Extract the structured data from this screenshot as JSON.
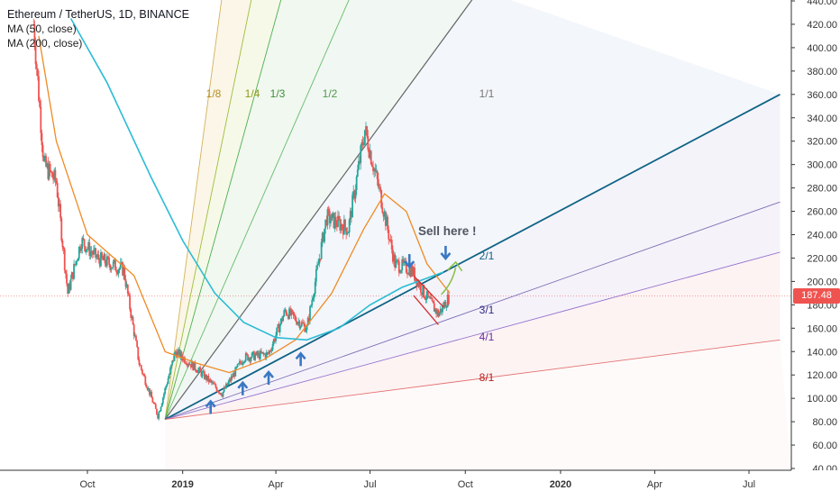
{
  "legend": {
    "title": "Ethereum / TetherUS, 1D, BINANCE",
    "ma50": "MA (50, close)",
    "ma200": "MA (200, close)"
  },
  "price_tag": {
    "value": "187.48",
    "color": "#ef5350"
  },
  "annotation": {
    "sell_text": "Sell here !"
  },
  "colors": {
    "up": "#26a69a",
    "down": "#ef5350",
    "ma50": "#f08a24",
    "ma200": "#2bbcd6",
    "trend": "#0f6385",
    "arrow": "#3a78c3"
  },
  "chart_data": {
    "type": "candlestick",
    "x_tick_labels": [
      "Oct",
      "2019",
      "Apr",
      "Jul",
      "Oct",
      "2020",
      "Apr",
      "Jul"
    ],
    "y_tick_labels": [
      "40.00",
      "60.00",
      "80.00",
      "100.00",
      "120.00",
      "140.00",
      "160.00",
      "180.00",
      "200.00",
      "220.00",
      "240.00",
      "260.00",
      "280.00",
      "300.00",
      "320.00",
      "340.00",
      "360.00",
      "380.00",
      "400.00",
      "420.00",
      "440.00"
    ],
    "ylim": [
      40,
      440
    ],
    "y_ticks": [
      40,
      60,
      80,
      100,
      120,
      140,
      160,
      180,
      200,
      220,
      240,
      260,
      280,
      300,
      320,
      340,
      360,
      380,
      400,
      420,
      440
    ],
    "x_tick_dates": [
      "2018-10-01",
      "2019-01-01",
      "2019-04-01",
      "2019-07-01",
      "2019-10-01",
      "2020-01-01",
      "2020-04-01",
      "2020-07-01"
    ],
    "last_price": 187.48,
    "price_path": [
      [
        "2018-08-10",
        420
      ],
      [
        "2018-08-20",
        300
      ],
      [
        "2018-09-01",
        285
      ],
      [
        "2018-09-12",
        190
      ],
      [
        "2018-09-25",
        235
      ],
      [
        "2018-10-10",
        220
      ],
      [
        "2018-11-05",
        210
      ],
      [
        "2018-11-20",
        130
      ],
      [
        "2018-12-08",
        85
      ],
      [
        "2018-12-25",
        140
      ],
      [
        "2019-01-15",
        125
      ],
      [
        "2019-02-08",
        104
      ],
      [
        "2019-03-01",
        135
      ],
      [
        "2019-03-25",
        138
      ],
      [
        "2019-04-10",
        175
      ],
      [
        "2019-05-01",
        160
      ],
      [
        "2019-05-20",
        255
      ],
      [
        "2019-06-10",
        245
      ],
      [
        "2019-06-26",
        330
      ],
      [
        "2019-07-12",
        270
      ],
      [
        "2019-07-25",
        215
      ],
      [
        "2019-08-10",
        210
      ],
      [
        "2019-08-22",
        190
      ],
      [
        "2019-09-05",
        172
      ],
      [
        "2019-09-16",
        187.48
      ]
    ],
    "ma50_path": [
      [
        "2018-08-15",
        410
      ],
      [
        "2018-09-01",
        320
      ],
      [
        "2018-10-01",
        240
      ],
      [
        "2018-11-15",
        205
      ],
      [
        "2018-12-15",
        140
      ],
      [
        "2019-01-15",
        130
      ],
      [
        "2019-02-15",
        122
      ],
      [
        "2019-03-20",
        133
      ],
      [
        "2019-04-20",
        150
      ],
      [
        "2019-05-25",
        190
      ],
      [
        "2019-06-25",
        245
      ],
      [
        "2019-07-15",
        275
      ],
      [
        "2019-08-05",
        260
      ],
      [
        "2019-08-25",
        215
      ],
      [
        "2019-09-16",
        190
      ]
    ],
    "ma200_path": [
      [
        "2018-09-15",
        425
      ],
      [
        "2018-10-20",
        370
      ],
      [
        "2018-12-01",
        290
      ],
      [
        "2019-01-01",
        235
      ],
      [
        "2019-02-01",
        190
      ],
      [
        "2019-03-01",
        165
      ],
      [
        "2019-04-01",
        152
      ],
      [
        "2019-05-01",
        150
      ],
      [
        "2019-06-01",
        160
      ],
      [
        "2019-07-01",
        180
      ],
      [
        "2019-08-01",
        195
      ],
      [
        "2019-09-10",
        208
      ]
    ],
    "gann_fan": {
      "origin": [
        "2018-12-15",
        82
      ],
      "lines": [
        {
          "label": "1/8",
          "color": "#d4b25a",
          "end": [
            "2019-02-12",
            470
          ]
        },
        {
          "label": "1/4",
          "color": "#9dbe3b",
          "end": [
            "2019-03-15",
            470
          ]
        },
        {
          "label": "1/3",
          "color": "#4caf50",
          "end": [
            "2019-04-15",
            470
          ]
        },
        {
          "label": "1/2",
          "color": "#66bb6a",
          "end": [
            "2019-06-25",
            470
          ]
        },
        {
          "label": "1/1",
          "color": "#666666",
          "end": [
            "2019-10-15",
            450
          ]
        },
        {
          "label": "2/1",
          "color": "#0f6385",
          "end": [
            "2020-07-31",
            360
          ]
        },
        {
          "label": "3/1",
          "color": "#7b6fb3",
          "end": [
            "2020-07-31",
            268
          ]
        },
        {
          "label": "4/1",
          "color": "#9575cd",
          "end": [
            "2020-07-31",
            225
          ]
        },
        {
          "label": "8/1",
          "color": "#e57373",
          "end": [
            "2020-07-31",
            150
          ]
        }
      ],
      "label_colors": {
        "1/8": "#b58d1e",
        "1/4": "#8a9a1b",
        "1/3": "#3c8f3c",
        "1/2": "#4f9a4f",
        "1/1": "#777777",
        "2/1": "#0f6385",
        "3/1": "#2c2a86",
        "4/1": "#6a2ca0",
        "8/1": "#b71c1c"
      }
    },
    "red_channel": [
      {
        "from": [
          "2019-08-12",
          205
        ],
        "to": [
          "2019-09-10",
          178
        ]
      },
      {
        "from": [
          "2019-08-12",
          188
        ],
        "to": [
          "2019-09-05",
          163
        ]
      }
    ],
    "support_arrow_dates": [
      [
        "2019-01-28",
        92
      ],
      [
        "2019-02-28",
        108
      ],
      [
        "2019-03-25",
        117
      ],
      [
        "2019-04-25",
        133
      ]
    ],
    "sell_arrow_dates": [
      [
        "2019-08-08",
        218
      ],
      [
        "2019-09-12",
        225
      ]
    ],
    "green_arrow": [
      "2019-09-20",
      212
    ]
  }
}
